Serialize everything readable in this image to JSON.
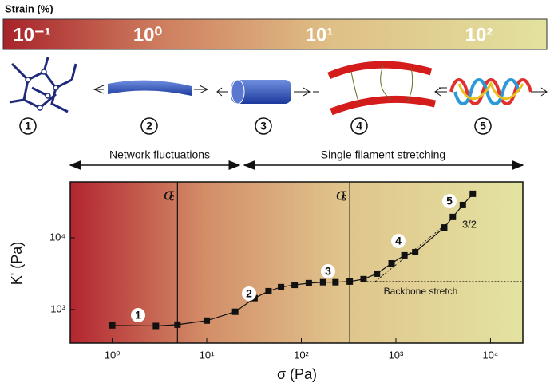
{
  "chart_data": {
    "type": "scatter",
    "strain_label": "Strain (%)",
    "strain_ticks": [
      "10⁻¹",
      "10⁰",
      "10¹",
      "10²"
    ],
    "stages": [
      "1",
      "2",
      "3",
      "4",
      "5"
    ],
    "regimes": [
      "Network fluctuations",
      "Single filament stretching"
    ],
    "xlabel": "σ (Pa)",
    "ylabel": "K' (Pa)",
    "log_x": true,
    "log_y": true,
    "xlim": [
      0.36,
      22000
    ],
    "xticks": [
      {
        "value": 1,
        "label": "10⁰"
      },
      {
        "value": 10,
        "label": "10¹"
      },
      {
        "value": 100,
        "label": "10²"
      },
      {
        "value": 1000,
        "label": "10³"
      },
      {
        "value": 10000,
        "label": "10⁴"
      }
    ],
    "ylim": [
      340,
      60000
    ],
    "yticks": [
      {
        "value": 1000,
        "label": "10³"
      },
      {
        "value": 10000,
        "label": "10⁴"
      }
    ],
    "color": "#111111",
    "x": [
      1,
      2.9,
      4.9,
      10,
      20,
      32,
      45,
      61,
      85,
      120,
      170,
      230,
      325,
      455,
      630,
      900,
      1230,
      1600,
      3240,
      4000,
      5100,
      6500
    ],
    "values": [
      600,
      590,
      615,
      700,
      930,
      1440,
      1800,
      2050,
      2200,
      2330,
      2400,
      2400,
      2450,
      2650,
      3160,
      4400,
      5700,
      6300,
      13900,
      19500,
      28600,
      41000
    ],
    "thresholds": [
      {
        "symbol": "σ",
        "sub": "c",
        "x": 4.9
      },
      {
        "symbol": "σ",
        "sub": "s",
        "x": 325
      }
    ],
    "backbone": {
      "label": "Backbone stretch",
      "value": 2450
    },
    "slope_label": "3/2"
  }
}
